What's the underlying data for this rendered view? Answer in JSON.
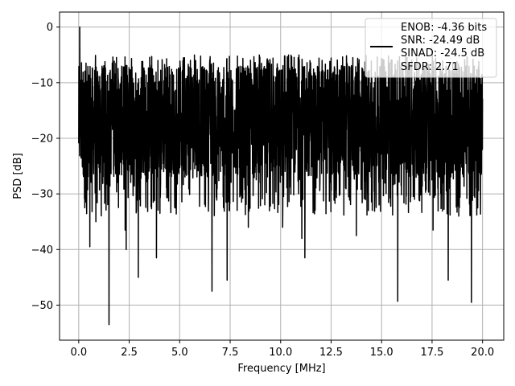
{
  "chart_data": {
    "type": "line",
    "title": "",
    "xlabel": "Frequency [MHz]",
    "ylabel": "PSD [dB]",
    "xlim": [
      -0.95,
      21.05
    ],
    "ylim": [
      -56.3,
      2.7
    ],
    "x_ticks": [
      0,
      2.5,
      5,
      7.5,
      10,
      12.5,
      15,
      17.5,
      20
    ],
    "x_tick_labels": [
      "0.0",
      "2.5",
      "5.0",
      "7.5",
      "10.0",
      "12.5",
      "15.0",
      "17.5",
      "20.0"
    ],
    "y_ticks": [
      0,
      -10,
      -20,
      -30,
      -40,
      -50
    ],
    "y_tick_labels": [
      "0",
      "−10",
      "−20",
      "−30",
      "−40",
      "−50"
    ],
    "grid": true,
    "legend_position": "upper-right",
    "series": [
      {
        "legend_lines": [
          "ENOB: -4.36 bits",
          "SNR: -24.49 dB",
          "SINAD: -24.5 dB",
          "SFDR: 2.71"
        ],
        "color": "#000000",
        "x_range": [
          0,
          20
        ],
        "baseline_level": -17,
        "upper_envelope": -7,
        "lower_envelope": -27,
        "peaks": [
          {
            "x": 0.05,
            "y": 0
          }
        ],
        "dips": [
          {
            "x": 0.3,
            "y": -32.5
          },
          {
            "x": 0.55,
            "y": -39.5
          },
          {
            "x": 0.85,
            "y": -35
          },
          {
            "x": 1.5,
            "y": -53.5
          },
          {
            "x": 2.3,
            "y": -36.5
          },
          {
            "x": 2.35,
            "y": -40
          },
          {
            "x": 2.95,
            "y": -45
          },
          {
            "x": 3.85,
            "y": -41.5
          },
          {
            "x": 6.6,
            "y": -47.5
          },
          {
            "x": 7.35,
            "y": -45.5
          },
          {
            "x": 8.4,
            "y": -36
          },
          {
            "x": 10.1,
            "y": -36
          },
          {
            "x": 11.05,
            "y": -38
          },
          {
            "x": 11.2,
            "y": -41.5
          },
          {
            "x": 13.75,
            "y": -37.5
          },
          {
            "x": 15.8,
            "y": -49.3
          },
          {
            "x": 17.55,
            "y": -36.5
          },
          {
            "x": 18.3,
            "y": -45.5
          },
          {
            "x": 19.45,
            "y": -49.5
          }
        ]
      }
    ]
  }
}
